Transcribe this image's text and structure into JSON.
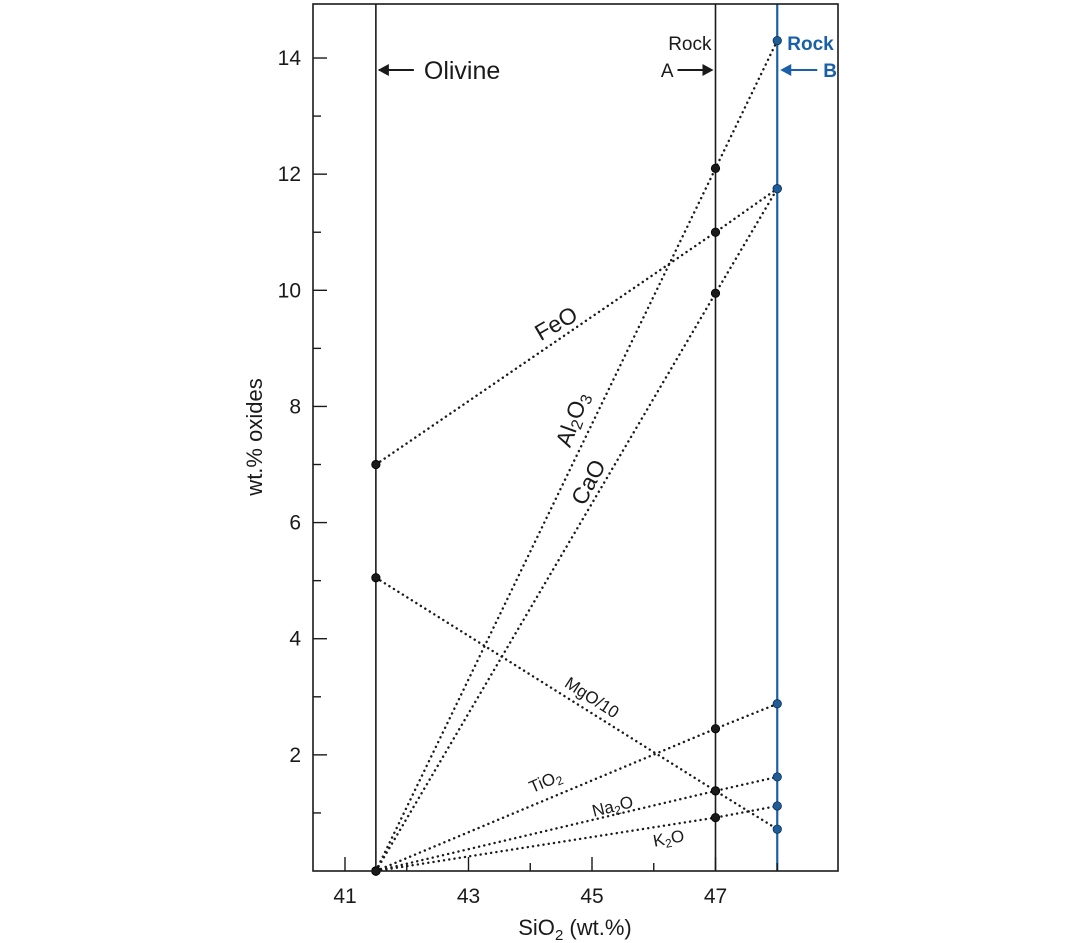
{
  "chart_data": {
    "type": "line",
    "xlabel": "SiO",
    "xlabel_sub": "2",
    "xlabel_tail": " (wt.%)",
    "ylabel": "wt.% oxides",
    "xlim": [
      40.6,
      49.2
    ],
    "ylim": [
      0,
      14.8
    ],
    "x_ticks": [
      41,
      43,
      45,
      47
    ],
    "x_minor_ticks": [
      42,
      44,
      46,
      48
    ],
    "y_ticks": [
      2,
      4,
      6,
      8,
      10,
      12,
      14
    ],
    "y_minor_ticks": [
      1,
      3,
      5,
      7,
      9,
      11,
      13
    ],
    "grid": false,
    "compositions": {
      "olivine": {
        "label": "Olivine",
        "sio2": 41.5,
        "color": "#1a1a1a"
      },
      "rock_a": {
        "label_line1": "Rock",
        "label_line2": "A",
        "sio2": 47.0,
        "color": "#1a1a1a"
      },
      "rock_b": {
        "label_line1": "Rock",
        "label_line2": "B",
        "sio2": 48.0,
        "color": "#1a5fa8"
      }
    },
    "series": [
      {
        "name": "FeO",
        "label": {
          "main": "FeO"
        },
        "x": [
          41.5,
          47.0,
          48.0
        ],
        "y": [
          7.0,
          11.0,
          11.75
        ]
      },
      {
        "name": "Al2O3",
        "label": {
          "main": "Al",
          "sub1": "2",
          "mid": "O",
          "sub2": "3"
        },
        "x": [
          41.5,
          47.0,
          48.0
        ],
        "y": [
          0.0,
          12.1,
          14.3
        ]
      },
      {
        "name": "CaO",
        "label": {
          "main": "CaO"
        },
        "x": [
          41.5,
          47.0,
          48.0
        ],
        "y": [
          0.0,
          9.95,
          11.75
        ]
      },
      {
        "name": "MgO/10",
        "label": {
          "main": "MgO/10"
        },
        "x": [
          41.5,
          47.0,
          48.0
        ],
        "y": [
          5.05,
          1.38,
          0.72
        ]
      },
      {
        "name": "TiO2",
        "label": {
          "main": "TiO",
          "sub1": "2"
        },
        "x": [
          41.5,
          47.0,
          48.0
        ],
        "y": [
          0.0,
          2.45,
          2.88
        ]
      },
      {
        "name": "Na2O",
        "label": {
          "main": "Na",
          "sub1": "2",
          "mid": "O"
        },
        "x": [
          41.5,
          47.0,
          48.0
        ],
        "y": [
          0.0,
          1.38,
          1.62
        ]
      },
      {
        "name": "K2O",
        "label": {
          "main": "K",
          "sub1": "2",
          "mid": "O"
        },
        "x": [
          41.5,
          47.0,
          48.0
        ],
        "y": [
          0.0,
          0.92,
          1.12
        ]
      }
    ]
  }
}
